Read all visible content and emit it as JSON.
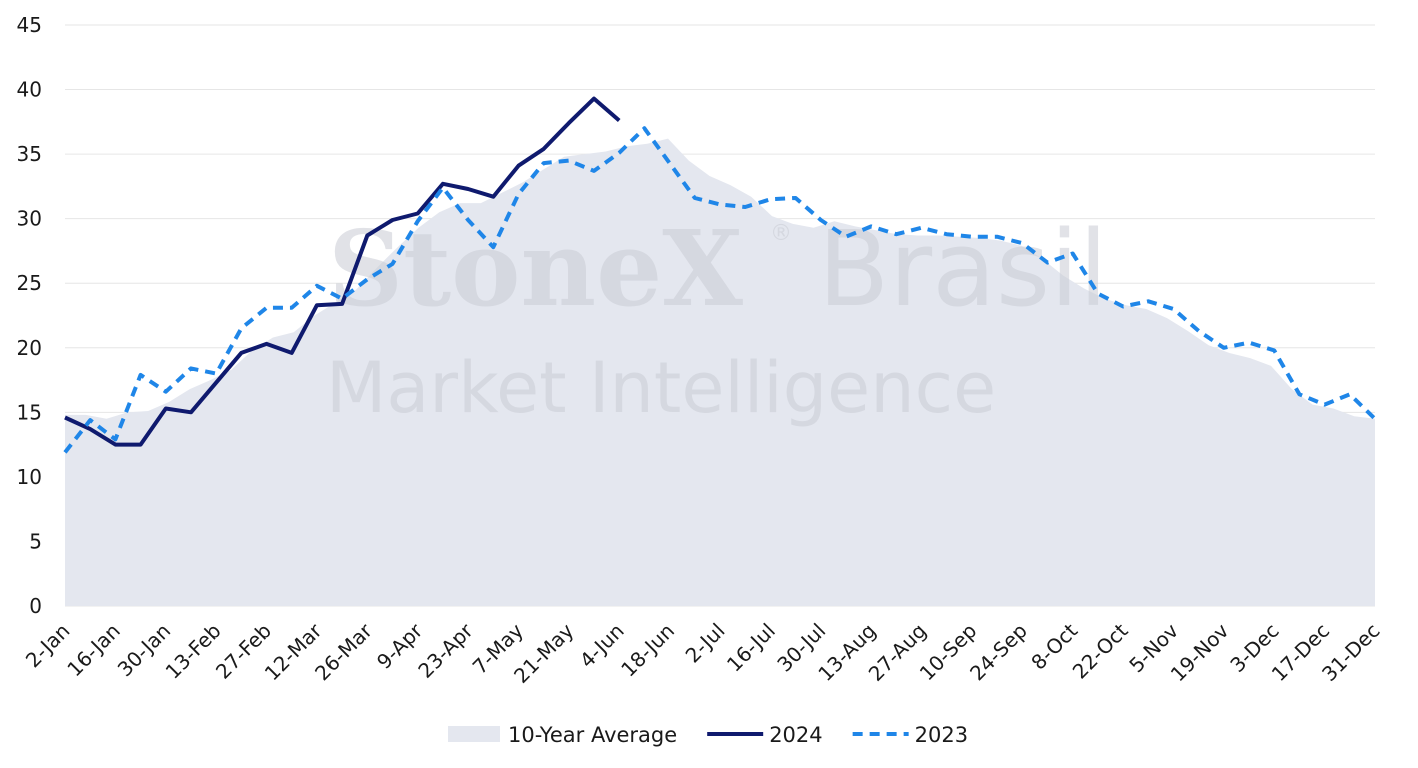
{
  "watermark": {
    "brand": "StoneX",
    "reg": "®",
    "country": "Brasil",
    "subtitle": "Market Intelligence"
  },
  "chart_data": {
    "type": "line",
    "title": "",
    "xlabel": "",
    "ylabel": "",
    "ylim": [
      0,
      45
    ],
    "yticks": [
      0,
      5,
      10,
      15,
      20,
      25,
      30,
      35,
      40,
      45
    ],
    "grid": "horizontal",
    "legend_position": "bottom",
    "x_tick_labels": [
      "2-Jan",
      "16-Jan",
      "30-Jan",
      "13-Feb",
      "27-Feb",
      "12-Mar",
      "26-Mar",
      "9-Apr",
      "23-Apr",
      "7-May",
      "21-May",
      "4-Jun",
      "18-Jun",
      "2-Jul",
      "16-Jul",
      "30-Jul",
      "13-Aug",
      "27-Aug",
      "10-Sep",
      "24-Sep",
      "8-Oct",
      "22-Oct",
      "5-Nov",
      "19-Nov",
      "3-Dec",
      "17-Dec",
      "31-Dec"
    ],
    "series": [
      {
        "name": "10-Year Average",
        "style": "area",
        "color": "#e4e7ef",
        "values": [
          14.8,
          14.8,
          14.5,
          15.0,
          15.1,
          15.8,
          16.8,
          17.5,
          18.3,
          19.8,
          20.8,
          21.2,
          22.5,
          23.5,
          24.5,
          26.2,
          27.8,
          29.3,
          30.5,
          31.2,
          31.2,
          32.0,
          32.8,
          33.8,
          34.8,
          35.0,
          35.2,
          35.6,
          35.8,
          36.2,
          34.5,
          33.3,
          32.6,
          31.7,
          30.2,
          29.6,
          29.3,
          29.8,
          29.4,
          29.1,
          28.8,
          28.7,
          28.7,
          28.6,
          28.5,
          28.3,
          27.9,
          26.9,
          25.6,
          24.6,
          23.8,
          23.3,
          23.0,
          22.3,
          21.3,
          20.2,
          19.6,
          19.2,
          18.6,
          16.8,
          15.6,
          15.3,
          14.7,
          14.5
        ]
      },
      {
        "name": "2024",
        "style": "solid",
        "color": "#0f1a6e",
        "values": [
          14.6,
          13.7,
          12.5,
          12.5,
          15.3,
          15.0,
          17.3,
          19.6,
          20.3,
          19.6,
          23.3,
          23.4,
          28.7,
          29.9,
          30.4,
          32.7,
          32.3,
          31.7,
          34.1,
          35.4,
          37.4,
          39.3,
          37.6
        ]
      },
      {
        "name": "2023",
        "style": "dashed",
        "color": "#1f86e8",
        "values": [
          11.9,
          14.4,
          12.9,
          17.9,
          16.6,
          18.4,
          18.0,
          21.5,
          23.1,
          23.1,
          24.8,
          23.8,
          25.3,
          26.5,
          29.8,
          32.4,
          29.9,
          27.8,
          31.9,
          34.3,
          34.5,
          33.7,
          35.1,
          37.0,
          34.3,
          31.6,
          31.1,
          30.9,
          31.5,
          31.6,
          29.9,
          28.6,
          29.4,
          28.8,
          29.3,
          28.8,
          28.6,
          28.6,
          28.1,
          26.6,
          27.3,
          24.2,
          23.2,
          23.6,
          23.0,
          21.3,
          20.0,
          20.4,
          19.8,
          16.4,
          15.6,
          16.4,
          14.5
        ]
      }
    ]
  }
}
